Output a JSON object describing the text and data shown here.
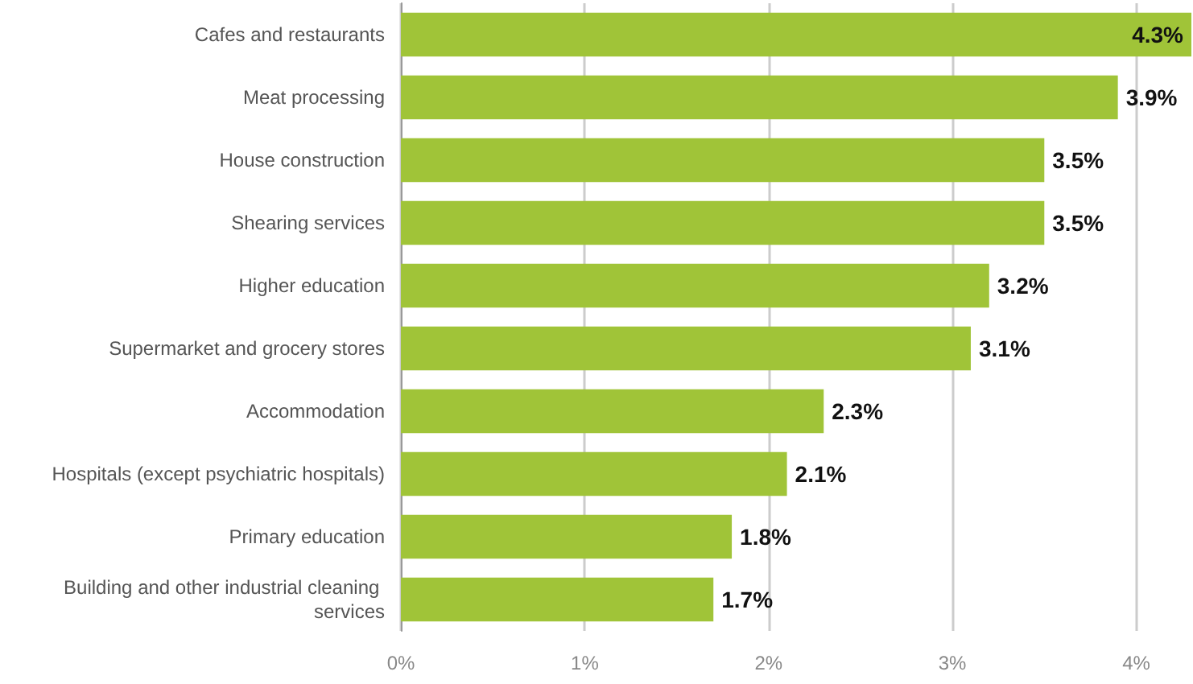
{
  "chart_data": {
    "type": "bar",
    "orientation": "horizontal",
    "categories": [
      "Cafes and restaurants",
      "Meat processing",
      "House construction",
      "Shearing services",
      "Higher education",
      "Supermarket and grocery stores",
      "Accommodation",
      "Hospitals (except psychiatric hospitals)",
      "Primary education",
      "Building and other industrial cleaning services"
    ],
    "values": [
      4.3,
      3.9,
      3.5,
      3.5,
      3.2,
      3.1,
      2.3,
      2.1,
      1.8,
      1.7
    ],
    "value_labels": [
      "4.3%",
      "3.9%",
      "3.5%",
      "3.5%",
      "3.2%",
      "3.1%",
      "2.3%",
      "2.1%",
      "1.8%",
      "1.7%"
    ],
    "color": "#a0c438",
    "xlim": [
      0,
      4.3
    ],
    "xticks": [
      {
        "value": 0,
        "label": "0%"
      },
      {
        "value": 1,
        "label": "1%"
      },
      {
        "value": 2,
        "label": "2%"
      },
      {
        "value": 3,
        "label": "3%"
      },
      {
        "value": 4,
        "label": "4%"
      }
    ],
    "grid": "x"
  }
}
